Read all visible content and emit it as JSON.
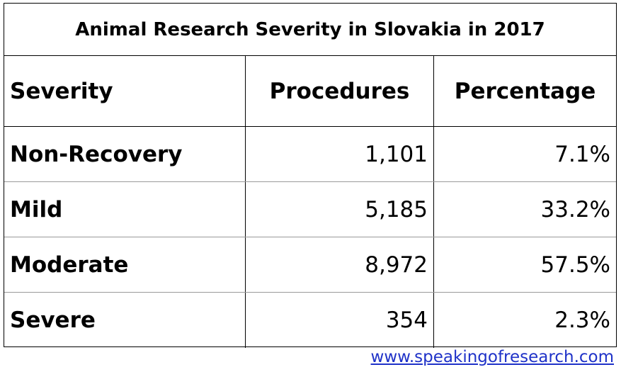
{
  "chart_data": {
    "type": "table",
    "title": "Animal Research Severity in Slovakia in 2017",
    "columns": [
      "Severity",
      "Procedures",
      "Percentage"
    ],
    "rows": [
      {
        "severity": "Non-Recovery",
        "procedures": "1,101",
        "percentage": "7.1%"
      },
      {
        "severity": "Mild",
        "procedures": "5,185",
        "percentage": "33.2%"
      },
      {
        "severity": "Moderate",
        "procedures": "8,972",
        "percentage": "57.5%"
      },
      {
        "severity": "Severe",
        "procedures": "354",
        "percentage": "2.3%"
      }
    ],
    "values": [
      1101,
      5185,
      8972,
      354
    ]
  },
  "footer": {
    "link_text": "www.speakingofresearch.com",
    "link_color": "#1f32c8"
  }
}
